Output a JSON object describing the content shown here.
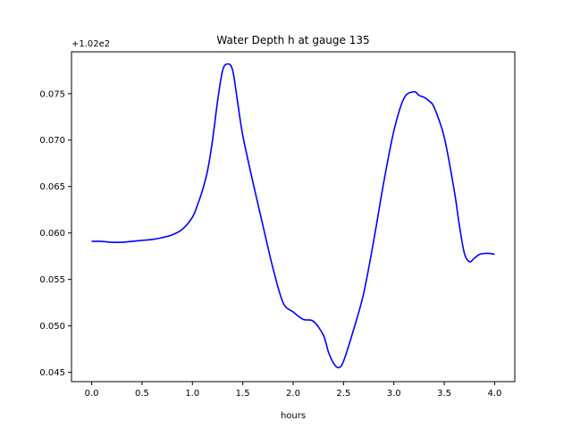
{
  "chart_data": {
    "type": "line",
    "title": "Water Depth h at gauge 135",
    "xlabel": "hours",
    "ylabel": "",
    "offset_label": "+1.02e2",
    "xlim": [
      -0.2,
      4.2
    ],
    "ylim": [
      0.044,
      0.0795
    ],
    "x_ticks": [
      0.0,
      0.5,
      1.0,
      1.5,
      2.0,
      2.5,
      3.0,
      3.5,
      4.0
    ],
    "x_tick_labels": [
      "0.0",
      "0.5",
      "1.0",
      "1.5",
      "2.0",
      "2.5",
      "3.0",
      "3.5",
      "4.0"
    ],
    "y_ticks": [
      0.045,
      0.05,
      0.055,
      0.06,
      0.065,
      0.07,
      0.075
    ],
    "y_tick_labels": [
      "0.045",
      "0.050",
      "0.055",
      "0.060",
      "0.065",
      "0.070",
      "0.075"
    ],
    "grid": false,
    "line_color": "#0000ff",
    "series": [
      {
        "x": [
          0.0,
          0.1,
          0.2,
          0.3,
          0.4,
          0.5,
          0.6,
          0.7,
          0.8,
          0.9,
          1.0,
          1.05,
          1.1,
          1.15,
          1.2,
          1.25,
          1.3,
          1.35,
          1.4,
          1.45,
          1.5,
          1.6,
          1.7,
          1.8,
          1.9,
          2.0,
          2.1,
          2.2,
          2.3,
          2.35,
          2.4,
          2.45,
          2.5,
          2.6,
          2.7,
          2.8,
          2.9,
          3.0,
          3.1,
          3.2,
          3.25,
          3.3,
          3.35,
          3.4,
          3.5,
          3.6,
          3.65,
          3.7,
          3.75,
          3.8,
          3.85,
          3.9,
          3.95,
          4.0
        ],
        "y": [
          0.0591,
          0.0591,
          0.059,
          0.059,
          0.0591,
          0.0592,
          0.0593,
          0.0595,
          0.0598,
          0.0604,
          0.0617,
          0.063,
          0.0646,
          0.0667,
          0.07,
          0.0742,
          0.0775,
          0.0782,
          0.0775,
          0.074,
          0.0705,
          0.0655,
          0.0608,
          0.0562,
          0.0525,
          0.0515,
          0.0507,
          0.0505,
          0.049,
          0.0472,
          0.046,
          0.0455,
          0.0462,
          0.0496,
          0.0535,
          0.0592,
          0.0655,
          0.071,
          0.0745,
          0.0752,
          0.0748,
          0.0746,
          0.0742,
          0.0735,
          0.0703,
          0.0645,
          0.0608,
          0.0578,
          0.0569,
          0.0573,
          0.0577,
          0.0578,
          0.0578,
          0.0577
        ]
      }
    ]
  }
}
